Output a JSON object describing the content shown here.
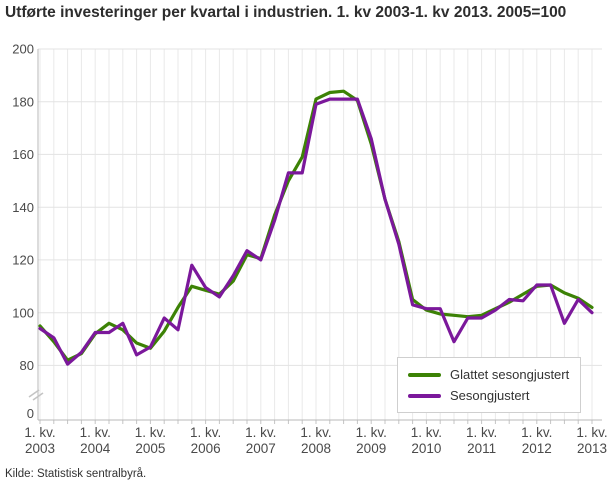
{
  "title": "Utførte investeringer per kvartal i industrien. 1. kv 2003-1. kv 2013. 2005=100",
  "source_note": "Kilde: Statistisk sentralbyrå.",
  "chart_data": {
    "type": "line",
    "title": "Utførte investeringer per kvartal i industrien. 1. kv 2003-1. kv 2013. 2005=100",
    "grid": "on",
    "legend_position": "bottom-right",
    "y_axis": {
      "ticks": [
        200,
        180,
        160,
        140,
        120,
        100,
        80
      ],
      "zero_label": "0",
      "has_axis_break": true,
      "range_shown": [
        80,
        200
      ]
    },
    "x_axis": {
      "tick_prefix": "1. kv.",
      "tick_years": [
        "2003",
        "2004",
        "2005",
        "2006",
        "2007",
        "2008",
        "2009",
        "2010",
        "2011",
        "2012",
        "2013"
      ],
      "quarters_total": 41
    },
    "colors": {
      "grid_minor": "#e9e9e9",
      "grid_major": "#e3e3e3",
      "axis": "#b9b9b9",
      "tick": "#c4c4c4",
      "label": "#4a4a4a"
    },
    "series": [
      {
        "name": "Glattet sesongjustert",
        "color": "#3c8205",
        "values": [
          95,
          89,
          82,
          84.5,
          92,
          96,
          93.5,
          88.5,
          86.5,
          93,
          102,
          110,
          108.5,
          107,
          112,
          122,
          120.5,
          137,
          150,
          159,
          181,
          183.5,
          184,
          180.5,
          164,
          143,
          127,
          105,
          101,
          99.5,
          99,
          98.5,
          99,
          101.5,
          104,
          107,
          110,
          110.5,
          107.5,
          105.5,
          102
        ]
      },
      {
        "name": "Sesongjustert",
        "color": "#7b189b",
        "values": [
          94,
          90.5,
          80.5,
          85,
          92.5,
          92.5,
          96,
          84,
          87,
          98,
          93.5,
          118,
          109.5,
          106,
          114,
          123.5,
          120,
          135,
          153,
          153,
          179,
          181,
          181,
          181,
          166,
          143,
          126,
          103,
          101.5,
          101.5,
          89,
          98,
          98,
          101,
          105,
          104.5,
          110.5,
          110.5,
          96,
          105,
          100
        ]
      }
    ]
  }
}
